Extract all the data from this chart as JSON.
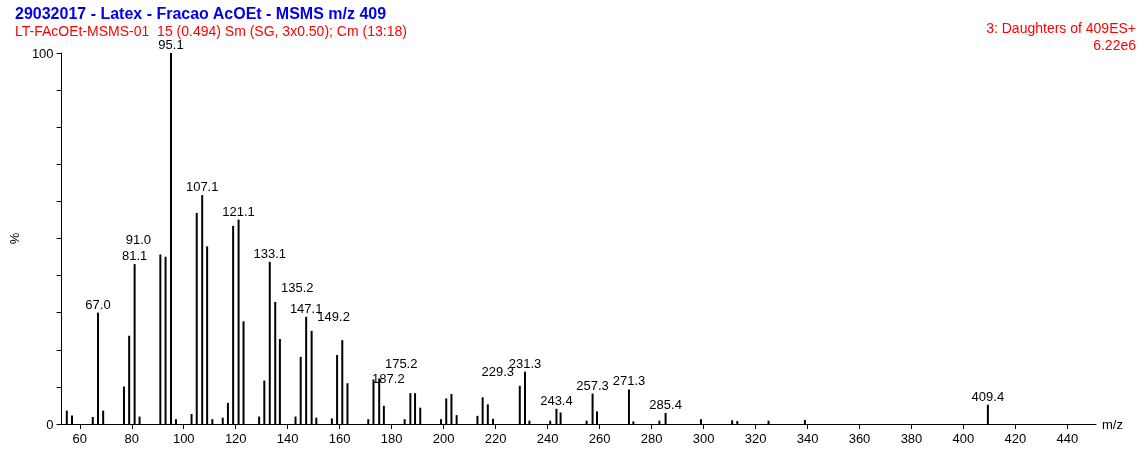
{
  "chart_data": {
    "type": "bar",
    "title": "29032017 - Latex - Fracao AcOEt - MSMS m/z 409",
    "subtitle": "LT-FAcOEt-MSMS-01  15 (0.494) Sm (SG, 3x0.50); Cm (13:18)",
    "xlabel": "m/z",
    "ylabel": "%",
    "color": "#000000",
    "x": [
      55,
      57,
      65,
      67.0,
      69,
      77,
      79,
      81.1,
      83,
      91.0,
      93,
      95.1,
      97,
      103,
      105,
      107.1,
      109,
      111,
      115,
      117,
      119,
      121.1,
      123,
      129,
      131,
      133.1,
      135.2,
      137,
      143,
      145,
      147.1,
      149.2,
      151,
      157,
      159,
      161,
      163,
      171,
      173,
      175.2,
      177,
      185,
      187.2,
      189,
      191,
      199,
      201,
      203,
      205,
      213,
      215,
      217,
      219,
      229.3,
      231.3,
      233,
      241,
      243.4,
      245,
      255,
      257.3,
      259,
      271.3,
      273,
      283,
      285.4,
      299,
      311,
      313,
      325,
      339,
      409.4
    ],
    "values": [
      3.6,
      2.3,
      1.9,
      30.0,
      3.6,
      10.1,
      23.8,
      43.1,
      2.0,
      45.7,
      45.1,
      100,
      1.3,
      2.7,
      56.9,
      61.7,
      47.9,
      1.3,
      1.7,
      5.7,
      53.4,
      55.1,
      27.7,
      2.0,
      11.7,
      43.7,
      32.9,
      22.9,
      2.0,
      18.1,
      28.9,
      25.1,
      1.7,
      1.5,
      18.6,
      22.6,
      11.0,
      1.3,
      12.0,
      12.3,
      4.9,
      1.3,
      8.3,
      8.3,
      4.4,
      1.3,
      6.9,
      8.1,
      2.4,
      2.2,
      7.2,
      5.3,
      1.4,
      10.3,
      14.1,
      0.9,
      0.9,
      4.1,
      3.1,
      0.9,
      8.2,
      3.4,
      9.3,
      0.7,
      0.9,
      3.0,
      1.3,
      1.0,
      0.8,
      0.9,
      1.1,
      5.2
    ],
    "xlim": [
      53,
      451
    ],
    "xticks": [
      60,
      80,
      100,
      120,
      140,
      160,
      180,
      200,
      220,
      240,
      260,
      280,
      300,
      320,
      340,
      360,
      380,
      400,
      420,
      440
    ],
    "ylim": [
      0,
      100
    ],
    "yticks": [
      0,
      {
        "value": 10,
        "label": null
      },
      {
        "value": 20,
        "label": null
      },
      {
        "value": 30,
        "label": null
      },
      {
        "value": 40,
        "label": null
      },
      {
        "value": 50,
        "label": null
      },
      {
        "value": 60,
        "label": null
      },
      {
        "value": 70,
        "label": null
      },
      {
        "value": 80,
        "label": null
      },
      {
        "value": 90,
        "label": null
      },
      100
    ],
    "grid": false,
    "annotations": [
      "3: Daughters of 409ES+",
      "6.22e6",
      {
        "text": "67.0",
        "x": 67.0,
        "y": 30.0
      },
      {
        "text": "81.1",
        "x": 81.1,
        "y": 43.1
      },
      {
        "text": "91.0",
        "x": 91.0,
        "y": 45.7
      },
      {
        "text": "95.1",
        "x": 95.1,
        "y": 100
      },
      {
        "text": "107.1",
        "x": 107.1,
        "y": 61.7
      },
      {
        "text": "121.1",
        "x": 121.1,
        "y": 55.1
      },
      {
        "text": "133.1",
        "x": 133.1,
        "y": 43.7
      },
      {
        "text": "135.2",
        "x": 135.2,
        "y": 32.9
      },
      {
        "text": "147.1",
        "x": 147.1,
        "y": 28.9
      },
      {
        "text": "149.2",
        "x": 149.2,
        "y": 25.1
      },
      {
        "text": "175.2",
        "x": 175.2,
        "y": 12.3
      },
      {
        "text": "187.2",
        "x": 187.2,
        "y": 8.3
      },
      {
        "text": "229.3",
        "x": 229.3,
        "y": 10.3
      },
      {
        "text": "231.3",
        "x": 231.3,
        "y": 14.1
      },
      {
        "text": "243.4",
        "x": 243.4,
        "y": 4.1
      },
      {
        "text": "257.3",
        "x": 257.3,
        "y": 8.2
      },
      {
        "text": "271.3",
        "x": 271.3,
        "y": 9.3
      },
      {
        "text": "285.4",
        "x": 285.4,
        "y": 3.0
      },
      {
        "text": "409.4",
        "x": 409.4,
        "y": 5.2
      }
    ]
  }
}
